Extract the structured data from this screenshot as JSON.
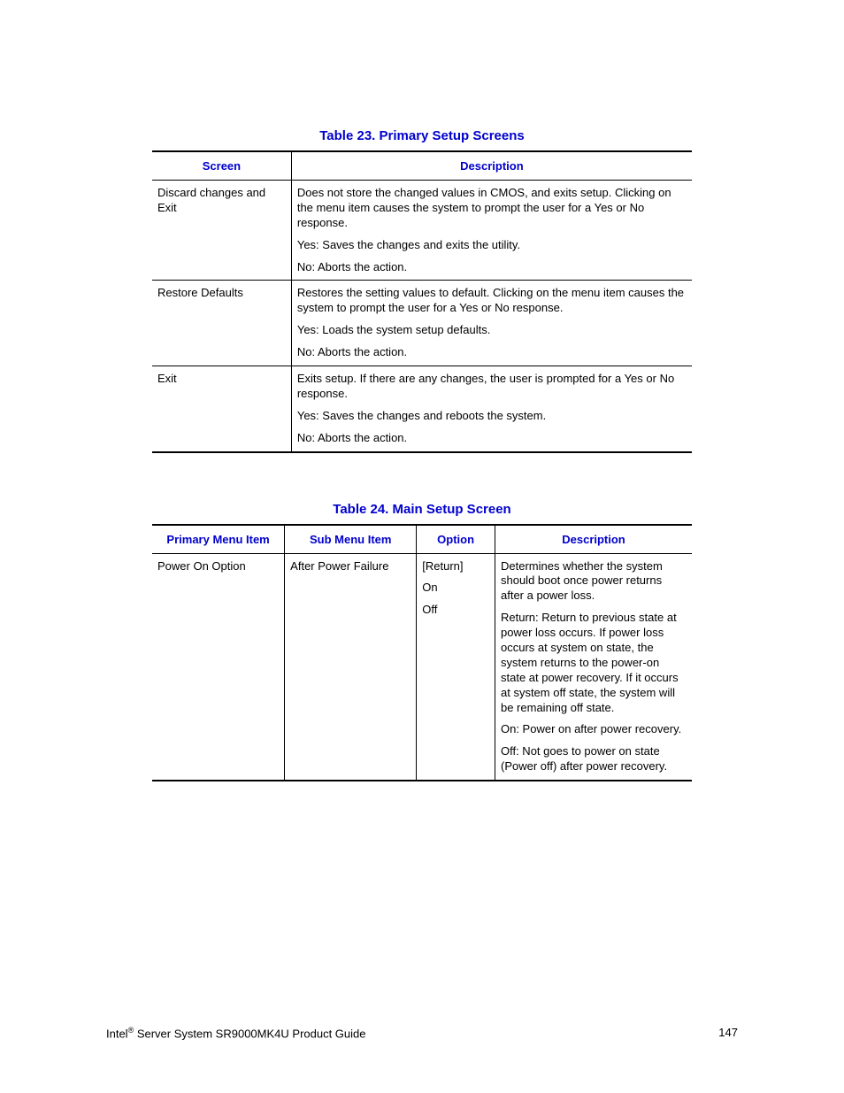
{
  "colors": {
    "heading_blue": "#0000cc",
    "text_black": "#000000",
    "background": "#ffffff",
    "border": "#000000"
  },
  "typography": {
    "body_fontsize": 13,
    "title_fontsize": 15,
    "font_family": "Arial, Helvetica, sans-serif"
  },
  "table1": {
    "title": "Table 23. Primary Setup Screens",
    "headers": {
      "c1": "Screen",
      "c2": "Description"
    },
    "rows": [
      {
        "screen": "Discard changes and Exit",
        "desc_p1": "Does not store the changed values in CMOS, and exits setup. Clicking on the menu item causes the system to prompt the user for a Yes or No response.",
        "desc_p2": "Yes: Saves the changes and exits the utility.",
        "desc_p3": "No: Aborts the action."
      },
      {
        "screen": "Restore Defaults",
        "desc_p1": "Restores the setting values to default. Clicking on the menu item causes the system to prompt the user for a Yes or No response.",
        "desc_p2": "Yes: Loads the system setup defaults.",
        "desc_p3": "No: Aborts the action."
      },
      {
        "screen": "Exit",
        "desc_p1": "Exits setup. If there are any changes, the user is prompted for a Yes or No response.",
        "desc_p2": "Yes: Saves the changes and reboots the system.",
        "desc_p3": "No: Aborts the action."
      }
    ]
  },
  "table2": {
    "title": "Table 24. Main Setup Screen",
    "headers": {
      "c1": "Primary Menu Item",
      "c2": "Sub Menu Item",
      "c3": "Option",
      "c4": "Description"
    },
    "rows": [
      {
        "primary": "Power On Option",
        "sub": "After Power Failure",
        "opt_p1": "[Return]",
        "opt_p2": "On",
        "opt_p3": "Off",
        "desc_p1": "Determines whether the system should boot once power returns after a power loss.",
        "desc_p2": "Return: Return to previous state at power loss occurs. If power loss occurs at system on state, the system returns to the power-on state at power recovery. If it occurs at system off state, the system will be remaining off state.",
        "desc_p3": "On: Power on after power recovery.",
        "desc_p4": "Off: Not goes to power on state (Power off) after power recovery."
      }
    ]
  },
  "footer": {
    "left_prefix": "Intel",
    "left_sup": "®",
    "left_suffix": " Server System SR9000MK4U Product Guide",
    "page_number": "147"
  }
}
